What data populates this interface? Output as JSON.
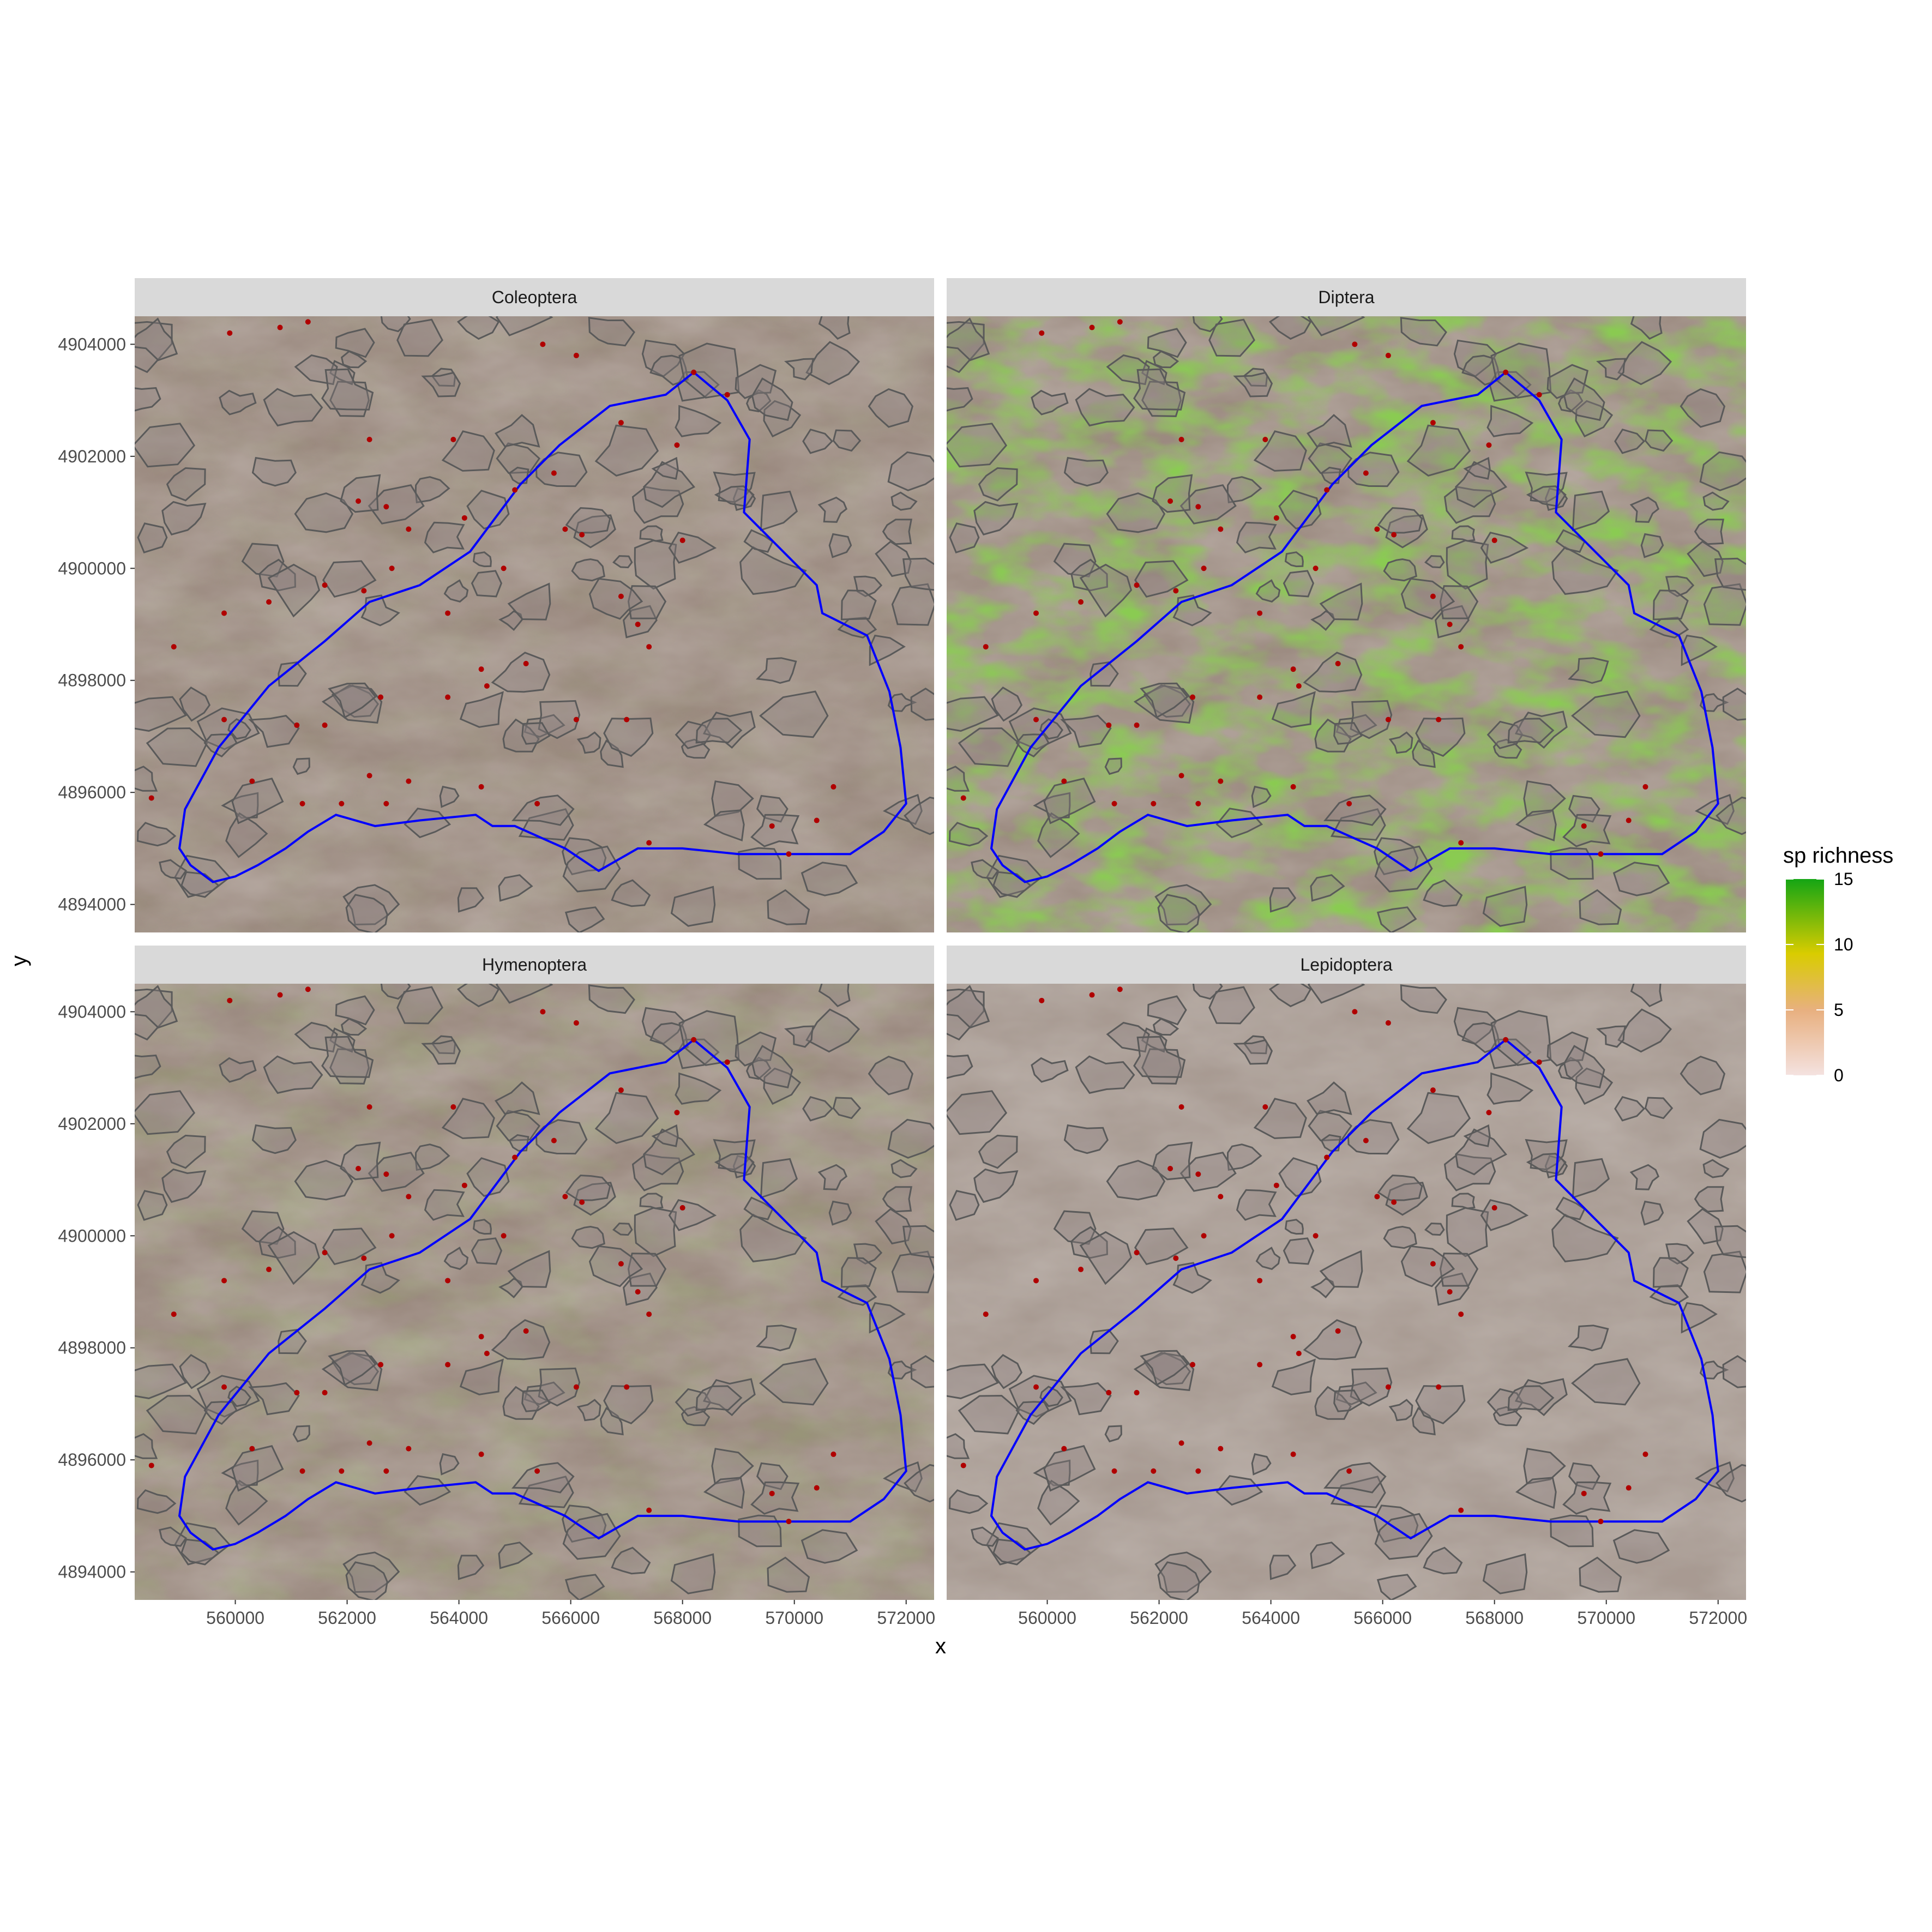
{
  "chart_data": {
    "type": "raster-map-facets",
    "xlabel": "x",
    "ylabel": "y",
    "xlim": [
      558200,
      572500
    ],
    "ylim": [
      4893500,
      4904500
    ],
    "x_ticks": [
      "560000",
      "562000",
      "564000",
      "566000",
      "568000",
      "570000",
      "572000"
    ],
    "x_tick_values": [
      560000,
      562000,
      564000,
      566000,
      568000,
      570000,
      572000
    ],
    "y_ticks": [
      "4894000",
      "4896000",
      "4898000",
      "4900000",
      "4902000",
      "4904000"
    ],
    "y_tick_values": [
      4894000,
      4896000,
      4898000,
      4900000,
      4902000,
      4904000
    ],
    "facets": [
      {
        "label": "Coleoptera",
        "mean_richness": 2,
        "green_intensity": 0.05
      },
      {
        "label": "Diptera",
        "mean_richness": 9,
        "green_intensity": 0.95
      },
      {
        "label": "Hymenoptera",
        "mean_richness": 4,
        "green_intensity": 0.15
      },
      {
        "label": "Lepidoptera",
        "mean_richness": 1,
        "green_intensity": 0.0
      }
    ],
    "legend": {
      "title": "sp richness",
      "ticks": [
        "0",
        "5",
        "10",
        "15"
      ],
      "tick_values": [
        0,
        5,
        10,
        15
      ],
      "colors": [
        "#f4e2e0",
        "#e8b080",
        "#d9cc00",
        "#14a514"
      ]
    },
    "boundary": [
      [
        559000,
        4895000
      ],
      [
        559100,
        4895700
      ],
      [
        559700,
        4896800
      ],
      [
        560600,
        4897900
      ],
      [
        561600,
        4898700
      ],
      [
        562400,
        4899400
      ],
      [
        563300,
        4899700
      ],
      [
        564200,
        4900300
      ],
      [
        565100,
        4901500
      ],
      [
        565800,
        4902200
      ],
      [
        566700,
        4902900
      ],
      [
        567700,
        4903100
      ],
      [
        568200,
        4903500
      ],
      [
        568800,
        4903000
      ],
      [
        569200,
        4902300
      ],
      [
        569100,
        4901000
      ],
      [
        569800,
        4900300
      ],
      [
        570400,
        4899700
      ],
      [
        570500,
        4899200
      ],
      [
        571300,
        4898800
      ],
      [
        571700,
        4897800
      ],
      [
        571900,
        4896800
      ],
      [
        572000,
        4895800
      ],
      [
        571600,
        4895300
      ],
      [
        571000,
        4894900
      ],
      [
        569000,
        4894900
      ],
      [
        568000,
        4895000
      ],
      [
        567200,
        4895000
      ],
      [
        566500,
        4894600
      ],
      [
        565900,
        4895000
      ],
      [
        565000,
        4895400
      ],
      [
        564600,
        4895400
      ],
      [
        564300,
        4895600
      ],
      [
        563300,
        4895500
      ],
      [
        562500,
        4895400
      ],
      [
        561800,
        4895600
      ],
      [
        561300,
        4895300
      ],
      [
        560900,
        4895000
      ],
      [
        560400,
        4894700
      ],
      [
        560000,
        4894500
      ],
      [
        559600,
        4894400
      ],
      [
        559200,
        4894700
      ],
      [
        559000,
        4895000
      ]
    ],
    "sample_points": [
      [
        559900,
        4904200
      ],
      [
        560800,
        4904300
      ],
      [
        561300,
        4904400
      ],
      [
        558900,
        4898600
      ],
      [
        559800,
        4899200
      ],
      [
        560600,
        4899400
      ],
      [
        561600,
        4899700
      ],
      [
        562300,
        4899600
      ],
      [
        562700,
        4901100
      ],
      [
        562800,
        4900000
      ],
      [
        563100,
        4900700
      ],
      [
        563800,
        4899200
      ],
      [
        564100,
        4900900
      ],
      [
        564800,
        4900000
      ],
      [
        565000,
        4901400
      ],
      [
        565700,
        4901700
      ],
      [
        565900,
        4900700
      ],
      [
        566200,
        4900600
      ],
      [
        566900,
        4899500
      ],
      [
        567200,
        4899000
      ],
      [
        567400,
        4898600
      ],
      [
        568000,
        4900500
      ],
      [
        567900,
        4902200
      ],
      [
        566900,
        4902600
      ],
      [
        568200,
        4903500
      ],
      [
        568800,
        4903100
      ],
      [
        564400,
        4898200
      ],
      [
        564500,
        4897900
      ],
      [
        563800,
        4897700
      ],
      [
        562600,
        4897700
      ],
      [
        561600,
        4897200
      ],
      [
        561100,
        4897200
      ],
      [
        560300,
        4896200
      ],
      [
        559800,
        4897300
      ],
      [
        558500,
        4895900
      ],
      [
        561200,
        4895800
      ],
      [
        561900,
        4895800
      ],
      [
        562400,
        4896300
      ],
      [
        562700,
        4895800
      ],
      [
        563100,
        4896200
      ],
      [
        564400,
        4896100
      ],
      [
        565400,
        4895800
      ],
      [
        567400,
        4895100
      ],
      [
        569600,
        4895400
      ],
      [
        569900,
        4894900
      ],
      [
        570400,
        4895500
      ],
      [
        570700,
        4896100
      ],
      [
        567000,
        4897300
      ],
      [
        566100,
        4897300
      ],
      [
        565200,
        4898300
      ],
      [
        563900,
        4902300
      ],
      [
        565500,
        4904000
      ],
      [
        566100,
        4903800
      ],
      [
        562400,
        4902300
      ],
      [
        562200,
        4901200
      ]
    ]
  }
}
